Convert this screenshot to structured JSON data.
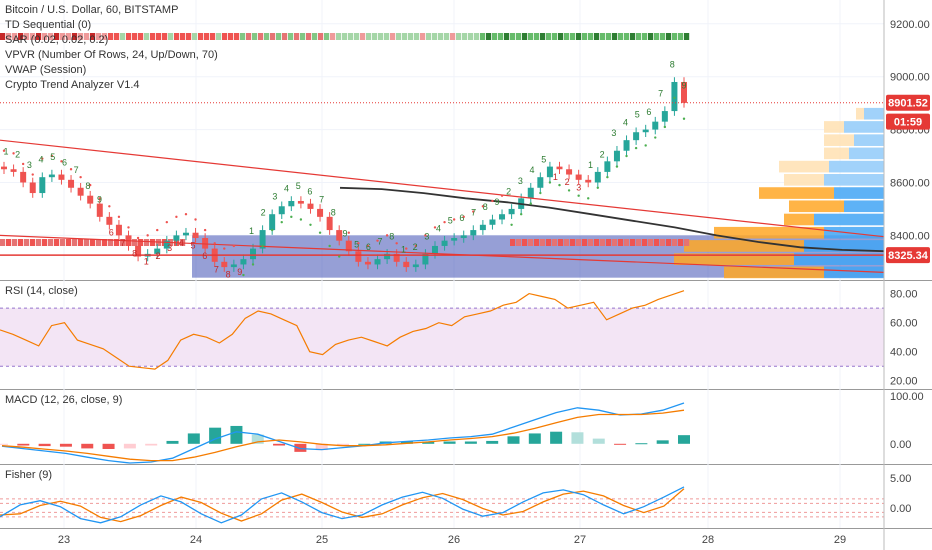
{
  "legend": {
    "symbol": "Bitcoin / U.S. Dollar, 60, BITSTAMP",
    "studies": [
      "TD Sequential (0)",
      "SAR (0.02, 0.02, 0.2)",
      "VPVR (Number Of Rows, 24, Up/Down, 70)",
      "VWAP (Session)",
      "Crypto Trend Analyzer V1.4"
    ]
  },
  "colors": {
    "up": "#26a69a",
    "down": "#ef5350",
    "sar_up": "#4caf50",
    "sar_down": "#ef5350",
    "vwap": "#333333",
    "trend_red": "#e53935",
    "rsi": "#f57c00",
    "rsi_band": "#f3e5f5",
    "macd": "#2196f3",
    "signal": "#f57c00",
    "fisher": "#2196f3",
    "fisher_trigger": "#f57c00",
    "price_tag": "#e53935",
    "value_area": "#3f51b5",
    "vpvr_up": "#90caf9",
    "vpvr_down": "#ffe0b2",
    "vpvr_up_va": "#42a5f5",
    "vpvr_down_va": "#ffa726"
  },
  "price_tags": [
    {
      "label": "8901.52",
      "value": 8901.52
    },
    {
      "label": "01:59",
      "value": 8830
    },
    {
      "label": "8325.34",
      "value": 8325.34
    }
  ],
  "time_labels": [
    "23",
    "24",
    "25",
    "26",
    "27",
    "28",
    "29"
  ],
  "chart_data": [
    {
      "type": "line",
      "pane": "price",
      "y_ticks": [
        "8400.00",
        "8600.00",
        "8800.00",
        "9000.00",
        "9200.00"
      ],
      "y_tick_values": [
        8400,
        8600,
        8800,
        9000,
        9200
      ],
      "ylim": [
        8235,
        9290
      ],
      "close": [
        8650,
        8640,
        8600,
        8560,
        8620,
        8630,
        8610,
        8580,
        8550,
        8520,
        8470,
        8440,
        8400,
        8360,
        8320,
        8330,
        8350,
        8380,
        8400,
        8410,
        8390,
        8350,
        8300,
        8280,
        8290,
        8310,
        8350,
        8420,
        8480,
        8510,
        8530,
        8520,
        8500,
        8470,
        8420,
        8380,
        8340,
        8300,
        8290,
        8310,
        8330,
        8300,
        8280,
        8290,
        8330,
        8360,
        8380,
        8390,
        8400,
        8420,
        8440,
        8460,
        8480,
        8500,
        8540,
        8580,
        8620,
        8660,
        8650,
        8630,
        8610,
        8600,
        8640,
        8680,
        8720,
        8760,
        8790,
        8800,
        8830,
        8870,
        8980,
        8901
      ],
      "series": [
        {
          "name": "VWAP (Session)",
          "values": [
            8580,
            8575,
            8560,
            8540,
            8525,
            8505,
            8480,
            8455,
            8430,
            8400,
            8375,
            8355,
            8345,
            8340
          ]
        },
        {
          "name": "RSI (14, close)",
          "values": [
            55,
            48,
            60,
            45,
            36,
            30,
            29,
            48,
            52,
            68,
            62,
            38,
            45,
            48,
            44,
            50,
            54,
            60,
            64,
            66,
            72,
            80,
            76,
            70,
            74,
            62,
            66,
            72,
            79,
            82
          ]
        }
      ]
    },
    {
      "type": "line",
      "pane": "rsi",
      "title": "RSI (14, close)",
      "y_ticks": [
        "20.00",
        "40.00",
        "60.00",
        "80.00"
      ],
      "y_tick_values": [
        20,
        40,
        60,
        80
      ],
      "ylim": [
        15,
        88
      ],
      "band": [
        30,
        70
      ],
      "values": [
        55,
        52,
        48,
        44,
        58,
        60,
        48,
        45,
        42,
        36,
        30,
        29,
        28,
        34,
        48,
        52,
        50,
        46,
        52,
        63,
        68,
        66,
        62,
        58,
        40,
        38,
        45,
        48,
        50,
        47,
        44,
        50,
        54,
        56,
        60,
        58,
        64,
        66,
        68,
        72,
        74,
        80,
        78,
        76,
        70,
        72,
        74,
        62,
        66,
        70,
        72,
        76,
        79,
        82
      ]
    },
    {
      "type": "bar",
      "pane": "macd",
      "title": "MACD (12, 26, close, 9)",
      "y_ticks": [
        "0.00",
        "100.00"
      ],
      "y_tick_values": [
        0,
        100
      ],
      "ylim": [
        -40,
        110
      ],
      "macd": [
        -5,
        -10,
        -15,
        -20,
        -28,
        -35,
        -40,
        -38,
        -30,
        -10,
        10,
        25,
        20,
        5,
        -10,
        -12,
        -8,
        -4,
        2,
        5,
        8,
        12,
        15,
        20,
        35,
        50,
        65,
        75,
        70,
        60,
        62,
        70,
        85
      ],
      "signal": [
        -4,
        -7,
        -11,
        -15,
        -20,
        -26,
        -32,
        -35,
        -35,
        -28,
        -18,
        -6,
        4,
        8,
        4,
        -1,
        -4,
        -4,
        -2,
        1,
        4,
        8,
        11,
        15,
        22,
        32,
        44,
        55,
        61,
        61,
        61,
        64,
        70
      ]
    },
    {
      "type": "line",
      "pane": "fisher",
      "title": "Fisher (9)",
      "y_ticks": [
        "0.00",
        "5.00"
      ],
      "y_tick_values": [
        0,
        5
      ],
      "ylim": [
        -3.2,
        7
      ],
      "levels": [
        -1.5,
        -0.75,
        0.75,
        1.5
      ],
      "fisher": [
        -1.5,
        0.5,
        1.2,
        0.2,
        -1.8,
        -2.5,
        -1.5,
        0.5,
        2.0,
        1.0,
        -1.0,
        -2.5,
        -1.2,
        1.5,
        2.5,
        1.0,
        -0.8,
        -1.8,
        -1.2,
        0.5,
        1.8,
        2.6,
        1.6,
        -0.2,
        -1.4,
        -0.8,
        1.0,
        2.5,
        3.0,
        2.2,
        0.5,
        -1.0,
        0.2,
        1.8,
        3.5
      ],
      "trigger": [
        -1.2,
        -1.0,
        0.4,
        1.1,
        0.3,
        -1.6,
        -2.3,
        -1.3,
        0.4,
        1.8,
        0.9,
        -0.9,
        -2.2,
        -1.0,
        1.3,
        2.3,
        0.9,
        -0.7,
        -1.6,
        -1.0,
        0.5,
        1.7,
        2.4,
        1.4,
        -0.1,
        -1.2,
        -0.6,
        1.0,
        2.3,
        2.8,
        2.0,
        0.4,
        -0.8,
        0.3,
        3.2
      ]
    }
  ],
  "td_labels": [
    {
      "text": "1",
      "color": "#2e7d32"
    },
    {
      "text": "2",
      "color": "#2e7d32"
    },
    {
      "text": "3",
      "color": "#2e7d32"
    },
    {
      "text": "4",
      "color": "#2e7d32"
    },
    {
      "text": "5",
      "color": "#2e7d32"
    },
    {
      "text": "6",
      "color": "#2e7d32"
    },
    {
      "text": "7",
      "color": "#2e7d32"
    },
    {
      "text": "8",
      "color": "#2e7d32"
    },
    {
      "text": "9",
      "color": "#2e7d32"
    },
    {
      "text": "6",
      "color": "#c62828"
    },
    {
      "text": "7",
      "color": "#c62828"
    },
    {
      "text": "8",
      "color": "#c62828"
    },
    {
      "text": "1",
      "color": "#c62828"
    },
    {
      "text": "2",
      "color": "#c62828"
    },
    {
      "text": "3",
      "color": "#c62828"
    },
    {
      "text": "4",
      "color": "#c62828"
    },
    {
      "text": "5",
      "color": "#c62828"
    },
    {
      "text": "6",
      "color": "#c62828"
    },
    {
      "text": "7",
      "color": "#c62828"
    },
    {
      "text": "8",
      "color": "#c62828"
    },
    {
      "text": "9",
      "color": "#c62828"
    },
    {
      "text": "1",
      "color": "#2e7d32"
    },
    {
      "text": "2",
      "color": "#2e7d32"
    },
    {
      "text": "3",
      "color": "#2e7d32"
    },
    {
      "text": "4",
      "color": "#2e7d32"
    },
    {
      "text": "5",
      "color": "#2e7d32"
    },
    {
      "text": "6",
      "color": "#2e7d32"
    },
    {
      "text": "7",
      "color": "#2e7d32"
    },
    {
      "text": "8",
      "color": "#2e7d32"
    },
    {
      "text": "9",
      "color": "#2e7d32"
    },
    {
      "text": "5",
      "color": "#2e7d32"
    },
    {
      "text": "6",
      "color": "#2e7d32"
    },
    {
      "text": "7",
      "color": "#2e7d32"
    },
    {
      "text": "8",
      "color": "#2e7d32"
    },
    {
      "text": "1",
      "color": "#2e7d32"
    },
    {
      "text": "2",
      "color": "#2e7d32"
    },
    {
      "text": "3",
      "color": "#2e7d32"
    },
    {
      "text": "4",
      "color": "#2e7d32"
    },
    {
      "text": "5",
      "color": "#2e7d32"
    },
    {
      "text": "6",
      "color": "#2e7d32"
    },
    {
      "text": "7",
      "color": "#2e7d32"
    },
    {
      "text": "8",
      "color": "#2e7d32"
    },
    {
      "text": "9",
      "color": "#2e7d32"
    },
    {
      "text": "2",
      "color": "#2e7d32"
    },
    {
      "text": "3",
      "color": "#2e7d32"
    },
    {
      "text": "4",
      "color": "#2e7d32"
    },
    {
      "text": "5",
      "color": "#2e7d32"
    },
    {
      "text": "1",
      "color": "#c62828"
    },
    {
      "text": "2",
      "color": "#c62828"
    },
    {
      "text": "3",
      "color": "#c62828"
    },
    {
      "text": "1",
      "color": "#2e7d32"
    },
    {
      "text": "2",
      "color": "#2e7d32"
    },
    {
      "text": "3",
      "color": "#2e7d32"
    },
    {
      "text": "4",
      "color": "#2e7d32"
    },
    {
      "text": "5",
      "color": "#2e7d32"
    },
    {
      "text": "6",
      "color": "#2e7d32"
    },
    {
      "text": "7",
      "color": "#2e7d32"
    },
    {
      "text": "8",
      "color": "#2e7d32"
    },
    {
      "text": "9",
      "color": "#2e7d32"
    }
  ]
}
